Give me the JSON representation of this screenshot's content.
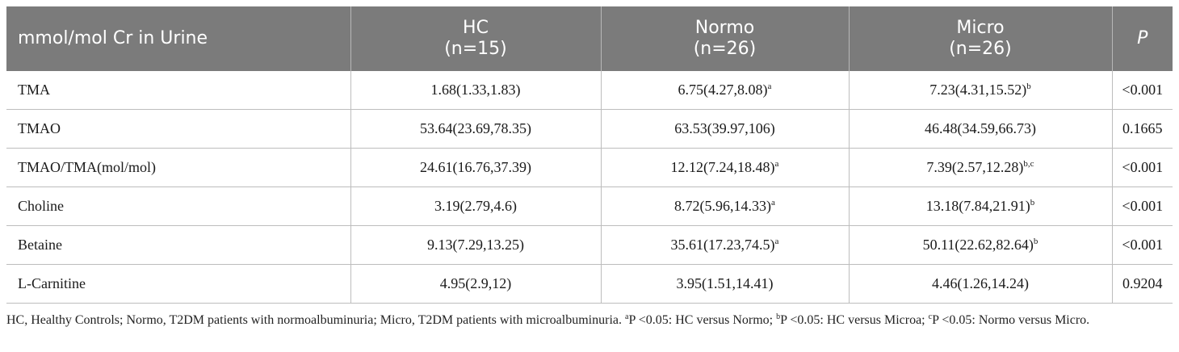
{
  "header": {
    "col0": "mmol/mol Cr in Urine",
    "hc_name": "HC",
    "hc_n": "(n=15)",
    "normo_name": "Normo",
    "normo_n": "(n=26)",
    "micro_name": "Micro",
    "micro_n": "(n=26)",
    "p": "P"
  },
  "rows": [
    {
      "label": "TMA",
      "hc": "1.68(1.33,1.83)",
      "normo": "6.75(4.27,8.08)",
      "normo_sup": "a",
      "micro": "7.23(4.31,15.52)",
      "micro_sup": "b",
      "p": "<0.001"
    },
    {
      "label": "TMAO",
      "hc": "53.64(23.69,78.35)",
      "normo": "63.53(39.97,106)",
      "normo_sup": "",
      "micro": "46.48(34.59,66.73)",
      "micro_sup": "",
      "p": "0.1665"
    },
    {
      "label": "TMAO/TMA(mol/mol)",
      "hc": "24.61(16.76,37.39)",
      "normo": "12.12(7.24,18.48)",
      "normo_sup": "a",
      "micro": "7.39(2.57,12.28)",
      "micro_sup": "b,c",
      "p": "<0.001"
    },
    {
      "label": "Choline",
      "hc": "3.19(2.79,4.6)",
      "normo": "8.72(5.96,14.33)",
      "normo_sup": "a",
      "micro": "13.18(7.84,21.91)",
      "micro_sup": "b",
      "p": "<0.001"
    },
    {
      "label": "Betaine",
      "hc": "9.13(7.29,13.25)",
      "normo": "35.61(17.23,74.5)",
      "normo_sup": "a",
      "micro": "50.11(22.62,82.64)",
      "micro_sup": "b",
      "p": "<0.001"
    },
    {
      "label": "L-Carnitine",
      "hc": "4.95(2.9,12)",
      "normo": "3.95(1.51,14.41)",
      "normo_sup": "",
      "micro": "4.46(1.26,14.24)",
      "micro_sup": "",
      "p": "0.9204"
    }
  ],
  "footnote": {
    "main": "HC, Healthy Controls; Normo, T2DM patients with normoalbuminuria; Micro, T2DM patients with microalbuminuria. ",
    "sup_a": "a",
    "text_a": "P <0.05: HC versus Normo; ",
    "sup_b": "b",
    "text_b": "P <0.05: HC versus Microa; ",
    "sup_c": "c",
    "text_c": "P <0.05: Normo versus Micro."
  }
}
